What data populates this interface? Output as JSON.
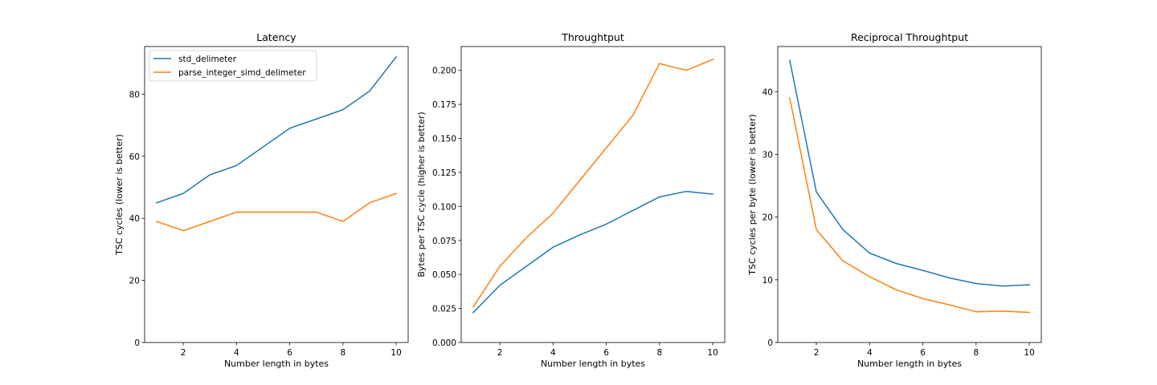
{
  "colors": {
    "std_delimeter": "#1f77b4",
    "parse_integer_simd_delimeter": "#ff7f0e"
  },
  "legend": {
    "entries": [
      "std_delimeter",
      "parse_integer_simd_delimeter"
    ],
    "location": "upper-left of first chart"
  },
  "chart_data": [
    {
      "type": "line",
      "title": "Latency",
      "xlabel": "Number length in bytes",
      "ylabel": "TSC cycles (lower is better)",
      "xlim": [
        0.55,
        10.45
      ],
      "ylim": [
        0,
        95.35
      ],
      "xticks": [
        2,
        4,
        6,
        8,
        10
      ],
      "yticks": [
        0,
        20,
        40,
        60,
        80
      ],
      "ytick_labels": [
        "0",
        "20",
        "40",
        "60",
        "80"
      ],
      "x": [
        1,
        2,
        3,
        4,
        5,
        6,
        7,
        8,
        9,
        10
      ],
      "series": [
        {
          "name": "std_delimeter",
          "values": [
            45,
            48,
            54,
            57,
            63,
            69,
            72,
            75,
            81,
            92
          ]
        },
        {
          "name": "parse_integer_simd_delimeter",
          "values": [
            39,
            36,
            39,
            42,
            42,
            42,
            42,
            39,
            45,
            48
          ]
        }
      ],
      "legend": "upper left",
      "grid": false
    },
    {
      "type": "line",
      "title": "Throughtput",
      "xlabel": "Number length in bytes",
      "ylabel": "Bytes per TSC cycle (higher is better)",
      "xlim": [
        0.55,
        10.45
      ],
      "ylim": [
        0,
        0.2175
      ],
      "xticks": [
        2,
        4,
        6,
        8,
        10
      ],
      "yticks": [
        0,
        0.025,
        0.05,
        0.075,
        0.1,
        0.125,
        0.15,
        0.175,
        0.2
      ],
      "ytick_labels": [
        "0.000",
        "0.025",
        "0.050",
        "0.075",
        "0.100",
        "0.125",
        "0.150",
        "0.175",
        "0.200"
      ],
      "x": [
        1,
        2,
        3,
        4,
        5,
        6,
        7,
        8,
        9,
        10
      ],
      "series": [
        {
          "name": "std_delimeter",
          "values": [
            0.022,
            0.042,
            0.056,
            0.07,
            0.079,
            0.087,
            0.097,
            0.107,
            0.111,
            0.109
          ]
        },
        {
          "name": "parse_integer_simd_delimeter",
          "values": [
            0.026,
            0.056,
            0.077,
            0.095,
            0.119,
            0.143,
            0.167,
            0.205,
            0.2,
            0.208
          ]
        }
      ],
      "grid": false
    },
    {
      "type": "line",
      "title": "Reciprocal Throughtput",
      "xlabel": "Number length in bytes",
      "ylabel": "TSC cycles per byte (lower is better)",
      "xlim": [
        0.55,
        10.45
      ],
      "ylim": [
        0,
        47.2
      ],
      "xticks": [
        2,
        4,
        6,
        8,
        10
      ],
      "yticks": [
        0,
        10,
        20,
        30,
        40
      ],
      "ytick_labels": [
        "0",
        "10",
        "20",
        "30",
        "40"
      ],
      "x": [
        1,
        2,
        3,
        4,
        5,
        6,
        7,
        8,
        9,
        10
      ],
      "series": [
        {
          "name": "std_delimeter",
          "values": [
            45,
            24,
            18,
            14.25,
            12.6,
            11.5,
            10.3,
            9.4,
            9.0,
            9.2
          ]
        },
        {
          "name": "parse_integer_simd_delimeter",
          "values": [
            39,
            18,
            13,
            10.5,
            8.4,
            7.0,
            6.0,
            4.9,
            5.0,
            4.8
          ]
        }
      ],
      "grid": false
    }
  ]
}
